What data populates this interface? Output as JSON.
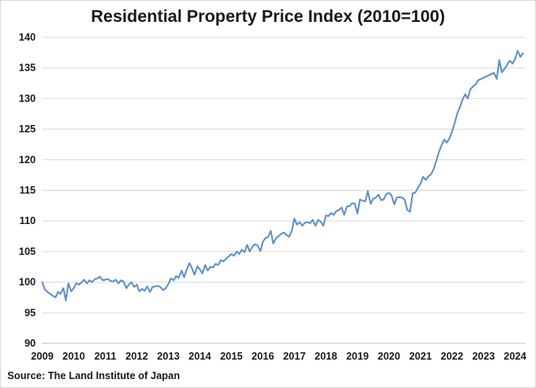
{
  "chart_data": {
    "type": "line",
    "title": "Residential Property Price Index (2010=100)",
    "source": "Source: The Land Institute of Japan",
    "xlabel": "",
    "ylabel": "",
    "ylim": [
      90,
      140
    ],
    "xlim": [
      2009,
      2024.33
    ],
    "y_ticks": [
      "90",
      "95",
      "100",
      "105",
      "110",
      "115",
      "120",
      "125",
      "130",
      "135",
      "140"
    ],
    "x_ticks": [
      "2009",
      "2010",
      "2011",
      "2012",
      "2013",
      "2014",
      "2015",
      "2016",
      "2017",
      "2018",
      "2019",
      "2020",
      "2021",
      "2022",
      "2023",
      "2024"
    ],
    "grid": "horizontal",
    "legend": "none",
    "line_color": "#5b8fc9",
    "series": [
      {
        "x": [
          2009.0,
          2009.08,
          2009.17,
          2009.25,
          2009.33,
          2009.42,
          2009.5,
          2009.58,
          2009.67,
          2009.75,
          2009.83,
          2009.92,
          2010.0,
          2010.08,
          2010.17,
          2010.25,
          2010.33,
          2010.42,
          2010.5,
          2010.58,
          2010.67,
          2010.75,
          2010.83,
          2010.92,
          2011.0,
          2011.08,
          2011.17,
          2011.25,
          2011.33,
          2011.42,
          2011.5,
          2011.58,
          2011.67,
          2011.75,
          2011.83,
          2011.92,
          2012.0,
          2012.08,
          2012.17,
          2012.25,
          2012.33,
          2012.42,
          2012.5,
          2012.58,
          2012.67,
          2012.75,
          2012.83,
          2012.92,
          2013.0,
          2013.08,
          2013.17,
          2013.25,
          2013.33,
          2013.42,
          2013.5,
          2013.58,
          2013.67,
          2013.75,
          2013.83,
          2013.92,
          2014.0,
          2014.08,
          2014.17,
          2014.25,
          2014.33,
          2014.42,
          2014.5,
          2014.58,
          2014.67,
          2014.75,
          2014.83,
          2014.92,
          2015.0,
          2015.08,
          2015.17,
          2015.25,
          2015.33,
          2015.42,
          2015.5,
          2015.58,
          2015.67,
          2015.75,
          2015.83,
          2015.92,
          2016.0,
          2016.08,
          2016.17,
          2016.25,
          2016.33,
          2016.42,
          2016.5,
          2016.58,
          2016.67,
          2016.75,
          2016.83,
          2016.92,
          2017.0,
          2017.08,
          2017.17,
          2017.25,
          2017.33,
          2017.42,
          2017.5,
          2017.58,
          2017.67,
          2017.75,
          2017.83,
          2017.92,
          2018.0,
          2018.08,
          2018.17,
          2018.25,
          2018.33,
          2018.42,
          2018.5,
          2018.58,
          2018.67,
          2018.75,
          2018.83,
          2018.92,
          2019.0,
          2019.08,
          2019.17,
          2019.25,
          2019.33,
          2019.42,
          2019.5,
          2019.58,
          2019.67,
          2019.75,
          2019.83,
          2019.92,
          2020.0,
          2020.08,
          2020.17,
          2020.25,
          2020.33,
          2020.42,
          2020.5,
          2020.58,
          2020.67,
          2020.75,
          2020.83,
          2020.92,
          2021.0,
          2021.08,
          2021.17,
          2021.25,
          2021.33,
          2021.42,
          2021.5,
          2021.58,
          2021.67,
          2021.75,
          2021.83,
          2021.92,
          2022.0,
          2022.08,
          2022.17,
          2022.25,
          2022.33,
          2022.42,
          2022.5,
          2022.58,
          2022.67,
          2022.75,
          2022.83,
          2022.92,
          2023.0,
          2023.08,
          2023.17,
          2023.25,
          2023.33,
          2023.42,
          2023.5,
          2023.58,
          2023.67,
          2023.75,
          2023.83,
          2023.92,
          2024.0,
          2024.08,
          2024.17,
          2024.25
        ],
        "values": [
          100.0,
          98.8,
          98.4,
          98.1,
          97.8,
          97.5,
          98.4,
          98.1,
          99.0,
          97.0,
          99.8,
          98.5,
          99.0,
          99.8,
          99.6,
          100.0,
          100.4,
          99.8,
          100.3,
          100.0,
          100.5,
          100.6,
          100.9,
          100.3,
          100.4,
          100.5,
          100.2,
          100.1,
          100.4,
          99.8,
          100.3,
          100.1,
          99.0,
          99.6,
          100.0,
          99.2,
          99.6,
          98.5,
          98.9,
          98.6,
          99.3,
          98.4,
          99.2,
          99.3,
          99.4,
          99.2,
          98.7,
          99.0,
          99.7,
          100.6,
          100.3,
          101.0,
          100.7,
          101.9,
          100.8,
          102.0,
          103.1,
          102.3,
          101.2,
          102.6,
          102.1,
          101.4,
          102.8,
          101.9,
          102.5,
          102.4,
          103.0,
          102.8,
          103.6,
          103.4,
          103.8,
          104.2,
          104.6,
          104.3,
          105.0,
          104.6,
          105.3,
          104.9,
          106.1,
          105.0,
          105.8,
          106.2,
          106.0,
          105.1,
          106.6,
          107.2,
          107.4,
          108.4,
          106.3,
          107.2,
          107.5,
          107.9,
          108.1,
          107.7,
          107.4,
          108.4,
          110.4,
          109.4,
          109.8,
          109.2,
          109.7,
          109.8,
          109.6,
          110.2,
          109.2,
          110.2,
          109.9,
          109.2,
          110.9,
          110.8,
          111.3,
          111.0,
          111.6,
          111.8,
          112.2,
          111.0,
          112.4,
          112.4,
          112.9,
          112.8,
          111.2,
          113.5,
          113.3,
          113.2,
          114.9,
          112.8,
          113.6,
          113.8,
          114.3,
          113.4,
          113.5,
          114.4,
          114.6,
          114.2,
          112.7,
          113.8,
          113.9,
          113.8,
          113.5,
          111.8,
          111.5,
          114.5,
          114.6,
          115.4,
          116.1,
          117.2,
          116.7,
          117.3,
          117.6,
          118.5,
          119.8,
          121.2,
          122.4,
          123.3,
          122.8,
          123.5,
          124.6,
          125.9,
          127.6,
          128.6,
          129.8,
          130.7,
          130.0,
          131.5,
          132.0,
          132.3,
          133.0,
          133.2,
          133.4,
          133.6,
          133.8,
          134.0,
          134.2,
          133.2,
          136.3,
          134.3,
          134.9,
          135.5,
          136.2,
          135.7,
          136.4,
          137.8,
          136.8,
          137.4
        ]
      }
    ]
  }
}
